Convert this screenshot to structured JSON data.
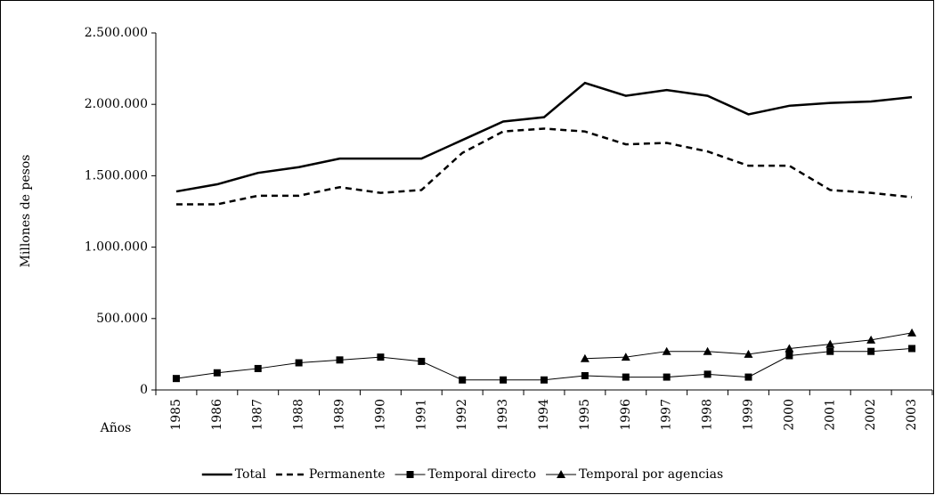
{
  "chart_data": {
    "type": "line",
    "y_label": "Millones de pesos",
    "x_label": "Años",
    "categories": [
      "1985",
      "1986",
      "1987",
      "1988",
      "1989",
      "1990",
      "1991",
      "1992",
      "1993",
      "1994",
      "1995",
      "1996",
      "1997",
      "1998",
      "1999",
      "2000",
      "2001",
      "2002",
      "2003"
    ],
    "ylim": [
      0,
      2500000
    ],
    "yticks": [
      0,
      {
        "value": 500000,
        "label": "500.000"
      },
      {
        "value": 1000000,
        "label": "1.000.000"
      },
      {
        "value": 1500000,
        "label": "1.500.000"
      },
      {
        "value": 2000000,
        "label": "2.000.000"
      },
      {
        "value": 2500000,
        "label": "2.500.000"
      }
    ],
    "legend": "bottom",
    "series": [
      {
        "name": "Total",
        "color": "#000000",
        "line_width": 2.5,
        "dashed": false,
        "marker": "none",
        "values": [
          1390000,
          1440000,
          1520000,
          1560000,
          1620000,
          1620000,
          1620000,
          1750000,
          1880000,
          1910000,
          2150000,
          2060000,
          2100000,
          2060000,
          1930000,
          1990000,
          2010000,
          2020000,
          2050000
        ]
      },
      {
        "name": "Permanente",
        "color": "#000000",
        "line_width": 2.5,
        "dashed": true,
        "marker": "none",
        "values": [
          1300000,
          1300000,
          1360000,
          1360000,
          1420000,
          1380000,
          1400000,
          1660000,
          1810000,
          1830000,
          1810000,
          1720000,
          1730000,
          1670000,
          1570000,
          1570000,
          1400000,
          1380000,
          1350000
        ]
      },
      {
        "name": "Temporal directo",
        "color": "#000000",
        "line_width": 1,
        "dashed": false,
        "marker": "square",
        "values": [
          80000,
          120000,
          150000,
          190000,
          210000,
          230000,
          200000,
          70000,
          70000,
          70000,
          100000,
          90000,
          90000,
          110000,
          90000,
          240000,
          270000,
          270000,
          290000
        ]
      },
      {
        "name": "Temporal por agencias",
        "color": "#000000",
        "line_width": 1,
        "dashed": false,
        "marker": "triangle",
        "values": [
          null,
          null,
          null,
          null,
          null,
          null,
          null,
          null,
          null,
          null,
          220000,
          230000,
          270000,
          270000,
          250000,
          290000,
          320000,
          350000,
          400000
        ]
      }
    ]
  }
}
